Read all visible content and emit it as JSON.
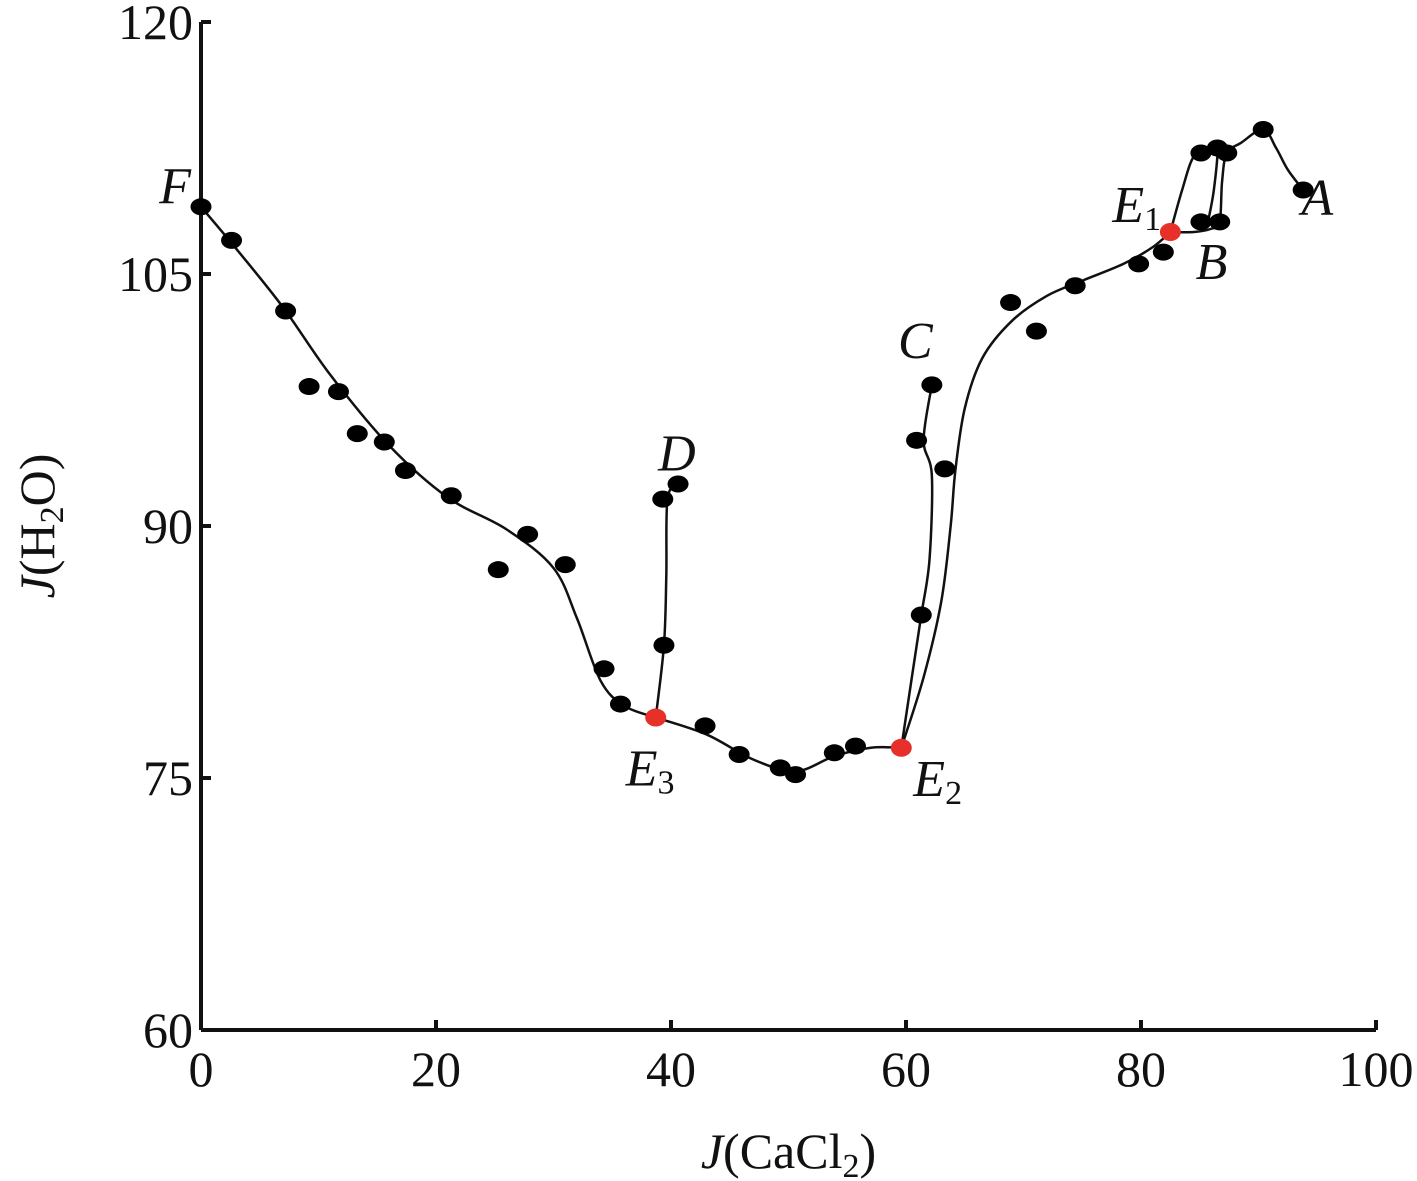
{
  "chart_data": {
    "type": "scatter",
    "xlabel": {
      "italic": "J",
      "text": "(CaCl",
      "sub": "2",
      "tail": ")"
    },
    "ylabel": {
      "italic": "J",
      "text": "(H",
      "sub": "2",
      "tail": "O)"
    },
    "xlim": [
      0,
      100
    ],
    "ylim": [
      60,
      120
    ],
    "xticks": [
      0,
      20,
      40,
      60,
      80,
      100
    ],
    "yticks": [
      60,
      75,
      90,
      105,
      120
    ],
    "grid": false,
    "legend": "none",
    "colors": {
      "point": "#000000",
      "invariant_point": "#e8302a",
      "line": "#111111"
    },
    "experimental_points": [
      [
        0,
        109.0
      ],
      [
        2.6,
        107.0
      ],
      [
        7.2,
        102.8
      ],
      [
        9.2,
        98.3
      ],
      [
        11.7,
        98.0
      ],
      [
        13.3,
        95.5
      ],
      [
        15.6,
        95.0
      ],
      [
        17.4,
        93.3
      ],
      [
        21.3,
        91.8
      ],
      [
        25.3,
        87.4
      ],
      [
        27.8,
        89.5
      ],
      [
        31.0,
        87.7
      ],
      [
        34.3,
        81.5
      ],
      [
        35.7,
        79.4
      ],
      [
        39.3,
        91.6
      ],
      [
        39.4,
        82.9
      ],
      [
        40.6,
        92.5
      ],
      [
        42.9,
        78.1
      ],
      [
        45.8,
        76.4
      ],
      [
        49.3,
        75.6
      ],
      [
        50.6,
        75.2
      ],
      [
        53.9,
        76.5
      ],
      [
        55.7,
        76.9
      ],
      [
        60.9,
        95.1
      ],
      [
        61.3,
        84.7
      ],
      [
        62.2,
        98.4
      ],
      [
        63.3,
        93.4
      ],
      [
        68.9,
        103.3
      ],
      [
        71.1,
        101.6
      ],
      [
        74.4,
        104.3
      ],
      [
        79.8,
        105.6
      ],
      [
        81.9,
        106.3
      ],
      [
        85.1,
        112.2
      ],
      [
        85.1,
        108.1
      ],
      [
        86.5,
        112.5
      ],
      [
        86.7,
        108.1
      ],
      [
        87.3,
        112.2
      ],
      [
        90.4,
        113.6
      ],
      [
        93.8,
        110.0
      ]
    ],
    "invariant_points": [
      {
        "name": "E1",
        "letter": "E",
        "sub": "1",
        "x": 82.5,
        "y": 107.5
      },
      {
        "name": "E2",
        "letter": "E",
        "sub": "2",
        "x": 59.6,
        "y": 76.8
      },
      {
        "name": "E3",
        "letter": "E",
        "sub": "3",
        "x": 38.7,
        "y": 78.6
      }
    ],
    "point_labels": [
      {
        "name": "A",
        "x": 95.0,
        "y": 108.5
      },
      {
        "name": "B",
        "x": 86.0,
        "y": 104.7
      },
      {
        "name": "C",
        "x": 60.8,
        "y": 100.0
      },
      {
        "name": "D",
        "x": 40.5,
        "y": 93.3
      },
      {
        "name": "F",
        "x": -2.2,
        "y": 109.2
      }
    ],
    "curves": [
      {
        "name": "F-E3",
        "points": [
          [
            0,
            109.0
          ],
          [
            3,
            106.5
          ],
          [
            7,
            103.0
          ],
          [
            11,
            99.0
          ],
          [
            16,
            94.8
          ],
          [
            21,
            91.7
          ],
          [
            26,
            89.8
          ],
          [
            30,
            87.5
          ],
          [
            32,
            84.5
          ],
          [
            34,
            80.8
          ],
          [
            36,
            79.3
          ],
          [
            38.7,
            78.6
          ]
        ]
      },
      {
        "name": "E3-D",
        "points": [
          [
            38.7,
            78.6
          ],
          [
            39.4,
            82.9
          ],
          [
            39.6,
            87.0
          ],
          [
            39.7,
            91.6
          ],
          [
            40.6,
            92.5
          ]
        ]
      },
      {
        "name": "E3-E2",
        "points": [
          [
            38.7,
            78.6
          ],
          [
            43,
            77.6
          ],
          [
            47,
            76.1
          ],
          [
            50.6,
            75.4
          ],
          [
            53.9,
            76.3
          ],
          [
            57,
            76.8
          ],
          [
            59.6,
            76.8
          ]
        ]
      },
      {
        "name": "E2-C",
        "points": [
          [
            59.6,
            76.8
          ],
          [
            60.5,
            81.0
          ],
          [
            61.3,
            84.7
          ],
          [
            62.0,
            88.0
          ],
          [
            62.2,
            93.0
          ],
          [
            61.5,
            95.1
          ],
          [
            62.2,
            98.4
          ]
        ]
      },
      {
        "name": "E2-E1",
        "points": [
          [
            59.6,
            76.8
          ],
          [
            61.5,
            81.0
          ],
          [
            63.0,
            85.5
          ],
          [
            63.8,
            90.0
          ],
          [
            64.2,
            93.3
          ],
          [
            65.0,
            97.0
          ],
          [
            66.5,
            100.0
          ],
          [
            69.0,
            102.2
          ],
          [
            72.0,
            103.7
          ],
          [
            75.0,
            104.6
          ],
          [
            78.5,
            105.6
          ],
          [
            81.0,
            106.6
          ],
          [
            82.5,
            107.5
          ]
        ]
      },
      {
        "name": "E1-A",
        "points": [
          [
            82.5,
            107.5
          ],
          [
            84.5,
            107.5
          ],
          [
            86.0,
            107.7
          ],
          [
            86.7,
            108.1
          ],
          [
            86.9,
            110.5
          ],
          [
            87.3,
            112.2
          ],
          [
            88.5,
            112.8
          ],
          [
            90.4,
            113.6
          ],
          [
            91.5,
            112.5
          ],
          [
            92.5,
            111.2
          ],
          [
            93.8,
            110.0
          ]
        ]
      },
      {
        "name": "E1-loop",
        "points": [
          [
            82.5,
            107.5
          ],
          [
            83.5,
            110.0
          ],
          [
            84.5,
            112.0
          ],
          [
            85.8,
            112.3
          ],
          [
            86.5,
            112.5
          ],
          [
            86.2,
            110.0
          ],
          [
            85.7,
            108.1
          ]
        ]
      }
    ]
  }
}
